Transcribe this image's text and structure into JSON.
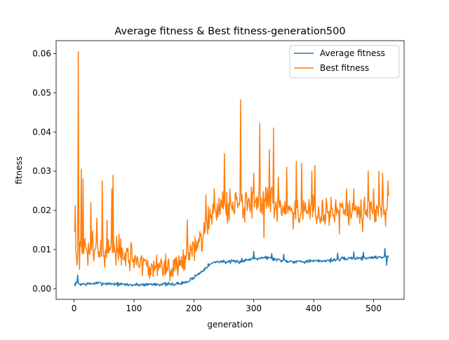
{
  "chart_data": {
    "type": "line",
    "title": "Average fitness & Best fitness-generation500",
    "xlabel": "generation",
    "ylabel": "fitness",
    "xlim": [
      -30,
      551
    ],
    "ylim": [
      -0.0027,
      0.0633
    ],
    "xticks": [
      0,
      100,
      200,
      300,
      400,
      500
    ],
    "yticks": [
      0.0,
      0.01,
      0.02,
      0.03,
      0.04,
      0.05,
      0.06
    ],
    "ytick_labels": [
      "0.00",
      "0.01",
      "0.02",
      "0.03",
      "0.04",
      "0.05",
      "0.06"
    ],
    "grid": false,
    "legend_position": "top-right",
    "n_points": 526,
    "series": [
      {
        "name": "Average fitness",
        "color": "#1f77b4",
        "anchors": [
          [
            0,
            0.001
          ],
          [
            5,
            0.0015
          ],
          [
            10,
            0.0012
          ],
          [
            20,
            0.0012
          ],
          [
            40,
            0.0014
          ],
          [
            60,
            0.0013
          ],
          [
            80,
            0.0011
          ],
          [
            100,
            0.001
          ],
          [
            120,
            0.0011
          ],
          [
            140,
            0.0012
          ],
          [
            160,
            0.0011
          ],
          [
            180,
            0.0014
          ],
          [
            190,
            0.0018
          ],
          [
            200,
            0.003
          ],
          [
            210,
            0.004
          ],
          [
            220,
            0.0055
          ],
          [
            230,
            0.0065
          ],
          [
            240,
            0.007
          ],
          [
            260,
            0.0068
          ],
          [
            280,
            0.007
          ],
          [
            300,
            0.0078
          ],
          [
            320,
            0.008
          ],
          [
            340,
            0.0074
          ],
          [
            360,
            0.007
          ],
          [
            380,
            0.007
          ],
          [
            400,
            0.007
          ],
          [
            420,
            0.0072
          ],
          [
            440,
            0.0074
          ],
          [
            460,
            0.0078
          ],
          [
            480,
            0.0078
          ],
          [
            500,
            0.008
          ],
          [
            525,
            0.0082
          ]
        ],
        "noise": 0.0007,
        "spikes": [
          [
            6,
            0.0035
          ],
          [
            280,
            0.0078
          ],
          [
            300,
            0.0095
          ],
          [
            330,
            0.009
          ],
          [
            350,
            0.0088
          ],
          [
            440,
            0.0091
          ],
          [
            467,
            0.0094
          ],
          [
            483,
            0.0093
          ],
          [
            519,
            0.0103
          ],
          [
            522,
            0.006
          ]
        ]
      },
      {
        "name": "Best fitness",
        "color": "#ff7f0e",
        "anchors": [
          [
            0,
            0.015
          ],
          [
            3,
            0.009
          ],
          [
            10,
            0.012
          ],
          [
            20,
            0.009
          ],
          [
            30,
            0.011
          ],
          [
            40,
            0.01
          ],
          [
            60,
            0.0095
          ],
          [
            80,
            0.009
          ],
          [
            100,
            0.007
          ],
          [
            120,
            0.0055
          ],
          [
            140,
            0.0052
          ],
          [
            160,
            0.0053
          ],
          [
            180,
            0.007
          ],
          [
            190,
            0.009
          ],
          [
            200,
            0.0105
          ],
          [
            210,
            0.0115
          ],
          [
            220,
            0.016
          ],
          [
            230,
            0.02
          ],
          [
            240,
            0.0215
          ],
          [
            260,
            0.021
          ],
          [
            280,
            0.023
          ],
          [
            300,
            0.0225
          ],
          [
            320,
            0.022
          ],
          [
            340,
            0.021
          ],
          [
            360,
            0.0195
          ],
          [
            380,
            0.02
          ],
          [
            400,
            0.02
          ],
          [
            420,
            0.019
          ],
          [
            440,
            0.019
          ],
          [
            460,
            0.0195
          ],
          [
            480,
            0.0195
          ],
          [
            500,
            0.02
          ],
          [
            525,
            0.021
          ]
        ],
        "noise": 0.0055,
        "spikes": [
          [
            2,
            0.0213
          ],
          [
            5,
            0.006
          ],
          [
            7,
            0.0605
          ],
          [
            9,
            0.005
          ],
          [
            12,
            0.0305
          ],
          [
            15,
            0.028
          ],
          [
            23,
            0.006
          ],
          [
            28,
            0.022
          ],
          [
            38,
            0.018
          ],
          [
            47,
            0.0275
          ],
          [
            51,
            0.0055
          ],
          [
            55,
            0.0175
          ],
          [
            63,
            0.0255
          ],
          [
            65,
            0.029
          ],
          [
            70,
            0.006
          ],
          [
            95,
            0.0118
          ],
          [
            112,
            0.0082
          ],
          [
            145,
            0.0076
          ],
          [
            170,
            0.005
          ],
          [
            189,
            0.0176
          ],
          [
            212,
            0.014
          ],
          [
            220,
            0.024
          ],
          [
            234,
            0.0255
          ],
          [
            251,
            0.0345
          ],
          [
            260,
            0.0255
          ],
          [
            278,
            0.0482
          ],
          [
            285,
            0.017
          ],
          [
            300,
            0.0295
          ],
          [
            310,
            0.0422
          ],
          [
            317,
            0.013
          ],
          [
            326,
            0.0355
          ],
          [
            333,
            0.041
          ],
          [
            341,
            0.0285
          ],
          [
            355,
            0.031
          ],
          [
            363,
            0.0205
          ],
          [
            371,
            0.0325
          ],
          [
            380,
            0.032
          ],
          [
            397,
            0.03
          ],
          [
            402,
            0.0315
          ],
          [
            420,
            0.018
          ],
          [
            443,
            0.014
          ],
          [
            455,
            0.0255
          ],
          [
            467,
            0.0255
          ],
          [
            482,
            0.0145
          ],
          [
            491,
            0.03
          ],
          [
            500,
            0.0255
          ],
          [
            509,
            0.03
          ],
          [
            515,
            0.0295
          ],
          [
            520,
            0.016
          ],
          [
            524,
            0.0275
          ]
        ]
      }
    ]
  }
}
